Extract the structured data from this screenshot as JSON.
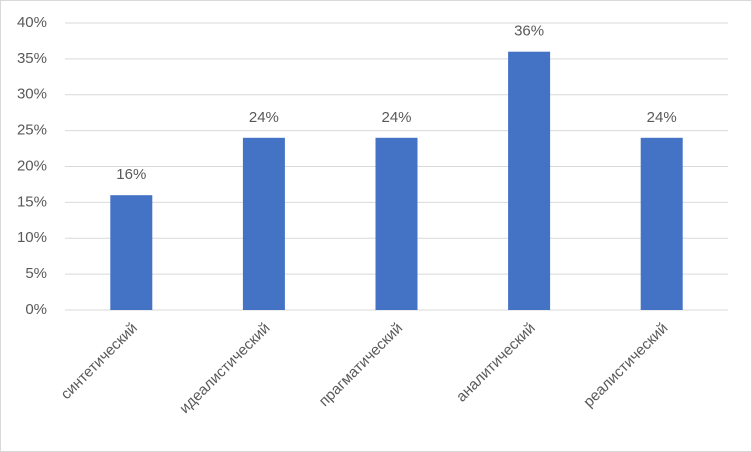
{
  "chart_data": {
    "type": "bar",
    "categories": [
      "синтетический",
      "идеалистический",
      "прагматический",
      "аналитический",
      "реалистический"
    ],
    "values": [
      16,
      24,
      24,
      36,
      24
    ],
    "value_labels": [
      "16%",
      "24%",
      "24%",
      "36%",
      "24%"
    ],
    "color": "#4472c4",
    "ylim": [
      0,
      40
    ],
    "yticks": [
      {
        "value": 0,
        "label": "0%"
      },
      {
        "value": 5,
        "label": "5%"
      },
      {
        "value": 10,
        "label": "10%"
      },
      {
        "value": 15,
        "label": "15%"
      },
      {
        "value": 20,
        "label": "20%"
      },
      {
        "value": 25,
        "label": "25%"
      },
      {
        "value": 30,
        "label": "30%"
      },
      {
        "value": 35,
        "label": "35%"
      },
      {
        "value": 40,
        "label": "40%"
      }
    ],
    "grid": true
  }
}
